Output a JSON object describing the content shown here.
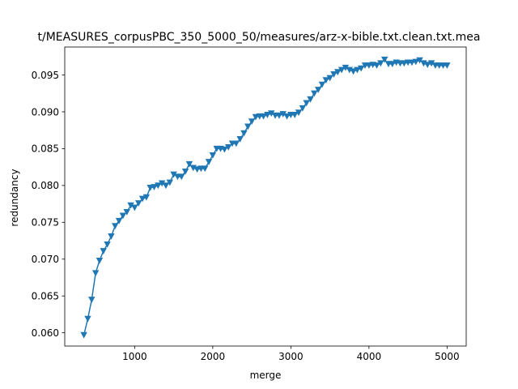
{
  "chart_data": {
    "type": "line",
    "title": "t/MEASURES_corpusPBC_350_5000_50/measures/arz-x-bible.txt.clean.txt.mea",
    "xlabel": "merge",
    "ylabel": "redundancy",
    "xlim": [
      105,
      5245
    ],
    "ylim": [
      0.0582,
      0.0988
    ],
    "xticks": [
      1000,
      2000,
      3000,
      4000,
      5000
    ],
    "xtick_labels": [
      "1000",
      "2000",
      "3000",
      "4000",
      "5000"
    ],
    "yticks": [
      0.06,
      0.065,
      0.07,
      0.075,
      0.08,
      0.085,
      0.09,
      0.095
    ],
    "ytick_labels": [
      "0.060",
      "0.065",
      "0.070",
      "0.075",
      "0.080",
      "0.085",
      "0.090",
      "0.095"
    ],
    "grid": false,
    "marker": "triangle-down",
    "color": "#1f77b4",
    "series": [
      {
        "x": [
          350,
          400,
          450,
          500,
          550,
          600,
          650,
          700,
          750,
          800,
          850,
          900,
          950,
          1000,
          1050,
          1100,
          1150,
          1200,
          1250,
          1300,
          1350,
          1400,
          1450,
          1500,
          1550,
          1600,
          1650,
          1700,
          1750,
          1800,
          1850,
          1900,
          1950,
          2000,
          2050,
          2100,
          2150,
          2200,
          2250,
          2300,
          2350,
          2400,
          2450,
          2500,
          2550,
          2600,
          2650,
          2700,
          2750,
          2800,
          2850,
          2900,
          2950,
          3000,
          3050,
          3100,
          3150,
          3200,
          3250,
          3300,
          3350,
          3400,
          3450,
          3500,
          3550,
          3600,
          3650,
          3700,
          3750,
          3800,
          3850,
          3900,
          3950,
          4000,
          4050,
          4100,
          4150,
          4200,
          4250,
          4300,
          4350,
          4400,
          4450,
          4500,
          4550,
          4600,
          4650,
          4700,
          4750,
          4800,
          4850,
          4900,
          4950,
          5000
        ],
        "y": [
          0.0597,
          0.0619,
          0.0645,
          0.0681,
          0.0698,
          0.0711,
          0.072,
          0.0731,
          0.0745,
          0.0752,
          0.0759,
          0.0764,
          0.0773,
          0.077,
          0.0776,
          0.0782,
          0.0784,
          0.0797,
          0.0798,
          0.08,
          0.0803,
          0.08,
          0.0804,
          0.0815,
          0.0812,
          0.0812,
          0.0819,
          0.0829,
          0.0824,
          0.0822,
          0.0823,
          0.0823,
          0.0832,
          0.0841,
          0.085,
          0.085,
          0.0849,
          0.0852,
          0.0857,
          0.0857,
          0.0863,
          0.0871,
          0.088,
          0.0887,
          0.0893,
          0.0894,
          0.0894,
          0.0896,
          0.0898,
          0.0895,
          0.0895,
          0.0897,
          0.0894,
          0.0896,
          0.0896,
          0.0899,
          0.0905,
          0.0912,
          0.0917,
          0.0925,
          0.093,
          0.0937,
          0.0943,
          0.0946,
          0.0951,
          0.0954,
          0.0957,
          0.096,
          0.0957,
          0.0955,
          0.0957,
          0.0959,
          0.0963,
          0.0963,
          0.0964,
          0.0963,
          0.0966,
          0.0971,
          0.0965,
          0.0965,
          0.0967,
          0.0966,
          0.0966,
          0.0967,
          0.0967,
          0.0968,
          0.097,
          0.0966,
          0.0964,
          0.0966,
          0.0963,
          0.0963,
          0.0963,
          0.0963
        ]
      }
    ]
  }
}
